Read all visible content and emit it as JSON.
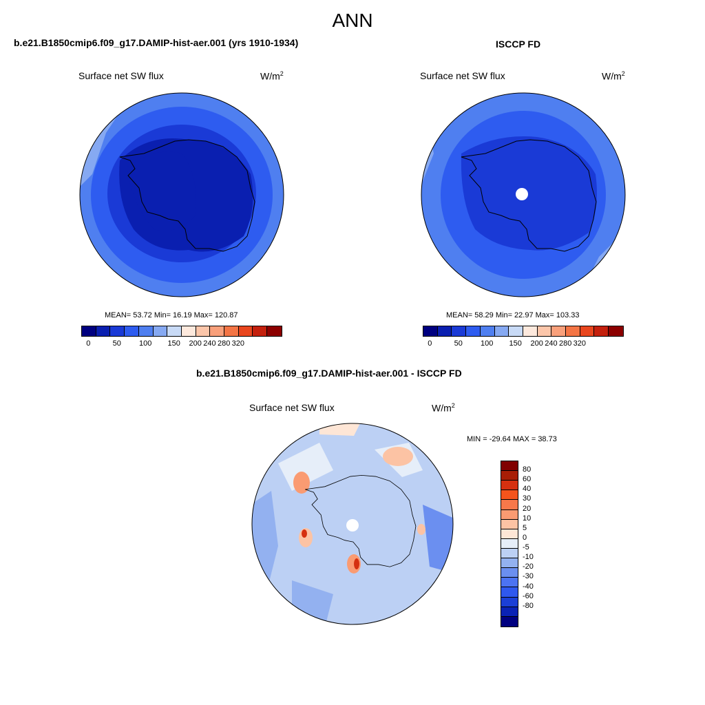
{
  "page": {
    "title": "ANN"
  },
  "colors": {
    "colorbar": [
      "#000080",
      "#0a1fb0",
      "#1a3ad6",
      "#2e5cf0",
      "#4f7ff0",
      "#86a9f2",
      "#c8daf6",
      "#fde9dd",
      "#fcc6aa",
      "#f9a07b",
      "#f47545",
      "#e9461e",
      "#c4200d",
      "#8c0000"
    ],
    "anomaly_bar": [
      "#800000",
      "#a81e06",
      "#d53010",
      "#f4541c",
      "#f7784a",
      "#fa9b72",
      "#fcc3a4",
      "#fee6d6",
      "#e6eef9",
      "#bcd0f4",
      "#93b1f0",
      "#6b8ff0",
      "#4c73f2",
      "#2f58ee",
      "#1b3fd6",
      "#0a22b5",
      "#000080"
    ]
  },
  "panel_left": {
    "heading": "b.e21.B1850cmip6.f09_g17.DAMIP-hist-aer.001 (yrs 1910-1934)",
    "variable": "Surface net SW flux",
    "units_base": "W/m",
    "units_exp": "2",
    "stats": "MEAN=  53.72  Min=  16.19  Max= 120.87",
    "ticks": [
      "0",
      "50",
      "100",
      "150",
      "200",
      "240",
      "280",
      "320"
    ]
  },
  "panel_right": {
    "heading": "ISCCP FD",
    "variable": "Surface net SW flux",
    "units_base": "W/m",
    "units_exp": "2",
    "stats": "MEAN=  58.29  Min=  22.97  Max= 103.33",
    "ticks": [
      "0",
      "50",
      "100",
      "150",
      "200",
      "240",
      "280",
      "320"
    ]
  },
  "panel_diff": {
    "heading": "b.e21.B1850cmip6.f09_g17.DAMIP-hist-aer.001 - ISCCP FD",
    "variable": "Surface net SW flux",
    "units_base": "W/m",
    "units_exp": "2",
    "stats": "MIN = -29.64 MAX =  38.73",
    "ticks": [
      "80",
      "60",
      "40",
      "30",
      "20",
      "10",
      "5",
      "0",
      "-5",
      "-10",
      "-20",
      "-30",
      "-40",
      "-60",
      "-80"
    ]
  }
}
